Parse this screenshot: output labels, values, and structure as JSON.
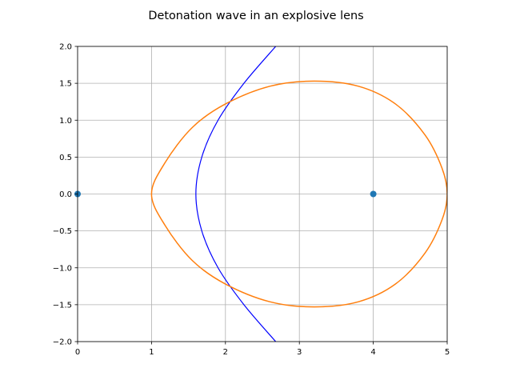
{
  "chart_data": {
    "type": "line",
    "title": "Detonation wave in an explosive lens",
    "xlabel": "",
    "ylabel": "",
    "xlim": [
      0,
      5
    ],
    "ylim": [
      -2,
      2
    ],
    "grid": true,
    "legend": "none",
    "x_ticks": [
      "0",
      "1",
      "2",
      "3",
      "4",
      "5"
    ],
    "y_ticks": [
      "−2.0",
      "−1.5",
      "−1.0",
      "−0.5",
      "0.0",
      "0.5",
      "1.0",
      "1.5",
      "2.0"
    ],
    "x_tick_values": [
      0,
      1,
      2,
      3,
      4,
      5
    ],
    "y_tick_values": [
      -2.0,
      -1.5,
      -1.0,
      -0.5,
      0.0,
      0.5,
      1.0,
      1.5,
      2.0
    ],
    "colors": {
      "hyperbola": "#0000ff",
      "oval": "#ff7f0e",
      "points": "#1f77b4",
      "grid": "#b0b0b0"
    },
    "series": [
      {
        "kind": "hyperbola-branch",
        "points": [
          {
            "x": 2.68,
            "y": -2.0
          },
          {
            "x": 2.25,
            "y": -1.5
          },
          {
            "x": 1.9,
            "y": -1.0
          },
          {
            "x": 1.68,
            "y": -0.5
          },
          {
            "x": 1.6,
            "y": 0.0
          },
          {
            "x": 1.68,
            "y": 0.5
          },
          {
            "x": 1.9,
            "y": 1.0
          },
          {
            "x": 2.25,
            "y": 1.5
          },
          {
            "x": 2.68,
            "y": 2.0
          }
        ]
      },
      {
        "kind": "closed-oval",
        "points": [
          {
            "x": 1.0,
            "y": 0.0
          },
          {
            "x": 1.18,
            "y": 0.42
          },
          {
            "x": 1.55,
            "y": 0.9
          },
          {
            "x": 2.0,
            "y": 1.22
          },
          {
            "x": 2.6,
            "y": 1.46
          },
          {
            "x": 3.2,
            "y": 1.53
          },
          {
            "x": 3.8,
            "y": 1.46
          },
          {
            "x": 4.3,
            "y": 1.22
          },
          {
            "x": 4.7,
            "y": 0.8
          },
          {
            "x": 4.93,
            "y": 0.35
          },
          {
            "x": 5.0,
            "y": 0.0
          },
          {
            "x": 4.93,
            "y": -0.35
          },
          {
            "x": 4.7,
            "y": -0.8
          },
          {
            "x": 4.3,
            "y": -1.22
          },
          {
            "x": 3.8,
            "y": -1.46
          },
          {
            "x": 3.2,
            "y": -1.53
          },
          {
            "x": 2.6,
            "y": -1.46
          },
          {
            "x": 2.0,
            "y": -1.22
          },
          {
            "x": 1.55,
            "y": -0.9
          },
          {
            "x": 1.18,
            "y": -0.42
          },
          {
            "x": 1.0,
            "y": 0.0
          }
        ]
      },
      {
        "kind": "scatter",
        "points": [
          {
            "x": 0,
            "y": 0
          },
          {
            "x": 4,
            "y": 0
          }
        ]
      }
    ]
  }
}
